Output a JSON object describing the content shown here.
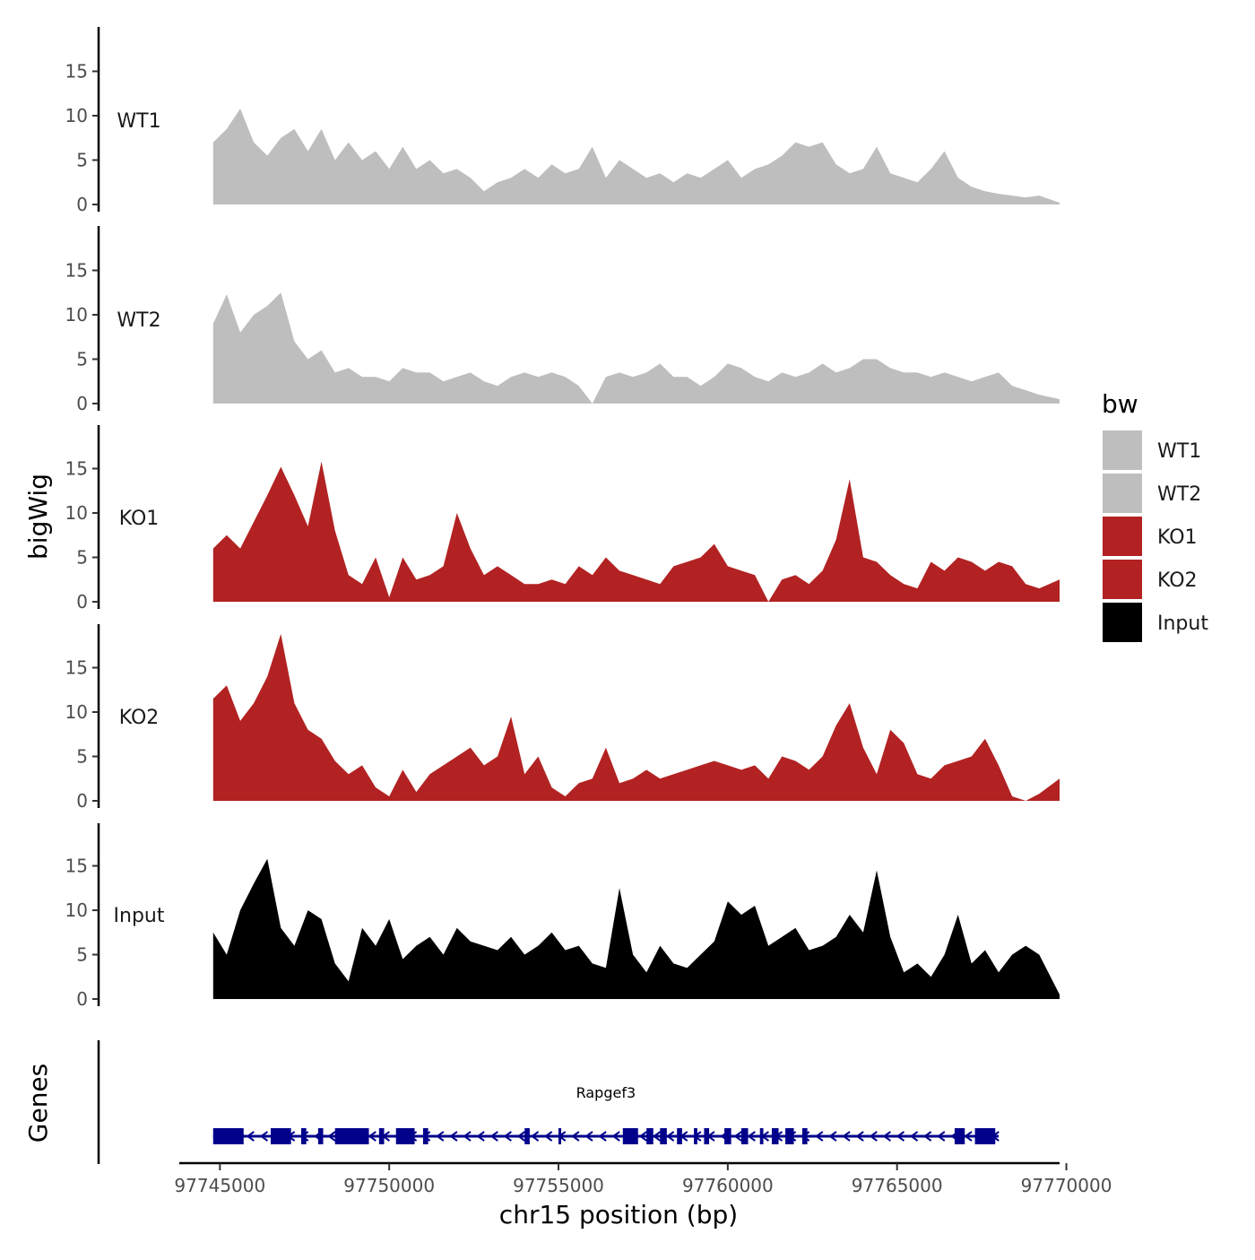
{
  "chart_data": {
    "type": "area",
    "ylabel": "bigWig",
    "xlabel": "chr15 position (bp)",
    "xlim": [
      97743800,
      97769800
    ],
    "xticks": [
      97745000,
      97750000,
      97755000,
      97760000,
      97765000,
      97770000
    ],
    "xtick_labels": [
      "97745000",
      "97750000",
      "97755000",
      "97760000",
      "97765000",
      "97770000"
    ],
    "ylim": [
      0,
      20
    ],
    "yticks": [
      0,
      5,
      10,
      15
    ],
    "ytick_labels": [
      "0",
      "5",
      "10",
      "15"
    ],
    "legend": {
      "title": "bw",
      "position": "right",
      "entries": [
        {
          "label": "WT1",
          "color": "#bebebe"
        },
        {
          "label": "WT2",
          "color": "#bebebe"
        },
        {
          "label": "KO1",
          "color": "#b22222"
        },
        {
          "label": "KO2",
          "color": "#b22222"
        },
        {
          "label": "Input",
          "color": "#000000"
        }
      ]
    },
    "series": [
      {
        "name": "WT1",
        "color": "#bebebe",
        "x": [
          97744800,
          97745200,
          97745600,
          97746000,
          97746400,
          97746800,
          97747200,
          97747600,
          97748000,
          97748400,
          97748800,
          97749200,
          97749600,
          97750000,
          97750400,
          97750800,
          97751200,
          97751600,
          97752000,
          97752400,
          97752800,
          97753200,
          97753600,
          97754000,
          97754400,
          97754800,
          97755200,
          97755600,
          97756000,
          97756400,
          97756800,
          97757200,
          97757600,
          97758000,
          97758400,
          97758800,
          97759200,
          97759600,
          97760000,
          97760400,
          97760800,
          97761200,
          97761600,
          97762000,
          97762400,
          97762800,
          97763200,
          97763600,
          97764000,
          97764400,
          97764800,
          97765200,
          97765600,
          97766000,
          97766400,
          97766800,
          97767200,
          97767600,
          97768000,
          97768400,
          97768800,
          97769200,
          97769800
        ],
        "y": [
          7,
          8.5,
          10.8,
          7,
          5.5,
          7.5,
          8.5,
          6,
          8.5,
          5,
          7,
          5,
          6,
          4,
          6.5,
          4,
          5,
          3.5,
          4,
          3,
          1.5,
          2.5,
          3,
          4,
          3,
          4.5,
          3.5,
          4,
          6.5,
          3,
          5,
          4,
          3,
          3.5,
          2.5,
          3.5,
          3,
          4,
          5,
          3,
          4,
          4.5,
          5.5,
          7,
          6.5,
          7,
          4.5,
          3.5,
          4,
          6.5,
          3.5,
          3,
          2.5,
          4,
          6,
          3,
          2,
          1.5,
          1.2,
          1,
          0.8,
          1,
          0.2
        ]
      },
      {
        "name": "WT2",
        "color": "#bebebe",
        "x": [
          97744800,
          97745200,
          97745600,
          97746000,
          97746400,
          97746800,
          97747200,
          97747600,
          97748000,
          97748400,
          97748800,
          97749200,
          97749600,
          97750000,
          97750400,
          97750800,
          97751200,
          97751600,
          97752000,
          97752400,
          97752800,
          97753200,
          97753600,
          97754000,
          97754400,
          97754800,
          97755200,
          97755600,
          97756000,
          97756400,
          97756800,
          97757200,
          97757600,
          97758000,
          97758400,
          97758800,
          97759200,
          97759600,
          97760000,
          97760400,
          97760800,
          97761200,
          97761600,
          97762000,
          97762400,
          97762800,
          97763200,
          97763600,
          97764000,
          97764400,
          97764800,
          97765200,
          97765600,
          97766000,
          97766400,
          97766800,
          97767200,
          97767600,
          97768000,
          97768400,
          97768800,
          97769200,
          97769800
        ],
        "y": [
          9,
          12.3,
          8,
          10,
          11,
          12.5,
          7,
          5,
          6,
          3.5,
          4,
          3,
          3,
          2.5,
          4,
          3.5,
          3.5,
          2.5,
          3,
          3.5,
          2.5,
          2,
          3,
          3.5,
          3,
          3.5,
          3,
          2,
          0,
          3,
          3.5,
          3,
          3.5,
          4.5,
          3,
          3,
          2,
          3,
          4.5,
          4,
          3,
          2.5,
          3.5,
          3,
          3.5,
          4.5,
          3.5,
          4,
          5,
          5,
          4,
          3.5,
          3.5,
          3,
          3.5,
          3,
          2.5,
          3,
          3.5,
          2,
          1.5,
          1,
          0.5
        ]
      },
      {
        "name": "KO1",
        "color": "#b22222",
        "x": [
          97744800,
          97745200,
          97745600,
          97746000,
          97746400,
          97746800,
          97747200,
          97747600,
          97748000,
          97748400,
          97748800,
          97749200,
          97749600,
          97750000,
          97750400,
          97750800,
          97751200,
          97751600,
          97752000,
          97752400,
          97752800,
          97753200,
          97753600,
          97754000,
          97754400,
          97754800,
          97755200,
          97755600,
          97756000,
          97756400,
          97756800,
          97757200,
          97757600,
          97758000,
          97758400,
          97758800,
          97759200,
          97759600,
          97760000,
          97760400,
          97760800,
          97761200,
          97761600,
          97762000,
          97762400,
          97762800,
          97763200,
          97763600,
          97764000,
          97764400,
          97764800,
          97765200,
          97765600,
          97766000,
          97766400,
          97766800,
          97767200,
          97767600,
          97768000,
          97768400,
          97768800,
          97769200,
          97769800
        ],
        "y": [
          6,
          7.5,
          6,
          9,
          12,
          15.2,
          12,
          8.5,
          15.8,
          8,
          3,
          2,
          5,
          0.5,
          5,
          2.5,
          3,
          4,
          10,
          6,
          3,
          4,
          3,
          2,
          2,
          2.5,
          2,
          4,
          3,
          5,
          3.5,
          3,
          2.5,
          2,
          4,
          4.5,
          5,
          6.5,
          4,
          3.5,
          3,
          0,
          2.5,
          3,
          2,
          3.5,
          7,
          13.8,
          5,
          4.5,
          3,
          2,
          1.5,
          4.5,
          3.5,
          5,
          4.5,
          3.5,
          4.5,
          4,
          2,
          1.5,
          2.5
        ]
      },
      {
        "name": "KO2",
        "color": "#b22222",
        "x": [
          97744800,
          97745200,
          97745600,
          97746000,
          97746400,
          97746800,
          97747200,
          97747600,
          97748000,
          97748400,
          97748800,
          97749200,
          97749600,
          97750000,
          97750400,
          97750800,
          97751200,
          97751600,
          97752000,
          97752400,
          97752800,
          97753200,
          97753600,
          97754000,
          97754400,
          97754800,
          97755200,
          97755600,
          97756000,
          97756400,
          97756800,
          97757200,
          97757600,
          97758000,
          97758400,
          97758800,
          97759200,
          97759600,
          97760000,
          97760400,
          97760800,
          97761200,
          97761600,
          97762000,
          97762400,
          97762800,
          97763200,
          97763600,
          97764000,
          97764400,
          97764800,
          97765200,
          97765600,
          97766000,
          97766400,
          97766800,
          97767200,
          97767600,
          97768000,
          97768400,
          97768800,
          97769200,
          97769800
        ],
        "y": [
          11.5,
          13,
          9,
          11,
          14,
          18.8,
          11,
          8,
          7,
          4.5,
          3,
          4,
          1.5,
          0.5,
          3.5,
          1,
          3,
          4,
          5,
          6,
          4,
          5,
          9.5,
          3,
          5,
          1.5,
          0.5,
          2,
          2.5,
          6,
          2,
          2.5,
          3.5,
          2.5,
          3,
          3.5,
          4,
          4.5,
          4,
          3.5,
          4,
          2.5,
          5,
          4.5,
          3.5,
          5,
          8.5,
          11,
          6,
          3,
          8,
          6.5,
          3,
          2.5,
          4,
          4.5,
          5,
          7,
          4,
          0.5,
          0,
          0.8,
          2.5
        ]
      },
      {
        "name": "Input",
        "color": "#000000",
        "x": [
          97744800,
          97745200,
          97745600,
          97746000,
          97746400,
          97746800,
          97747200,
          97747600,
          97748000,
          97748400,
          97748800,
          97749200,
          97749600,
          97750000,
          97750400,
          97750800,
          97751200,
          97751600,
          97752000,
          97752400,
          97752800,
          97753200,
          97753600,
          97754000,
          97754400,
          97754800,
          97755200,
          97755600,
          97756000,
          97756400,
          97756800,
          97757200,
          97757600,
          97758000,
          97758400,
          97758800,
          97759200,
          97759600,
          97760000,
          97760400,
          97760800,
          97761200,
          97761600,
          97762000,
          97762400,
          97762800,
          97763200,
          97763600,
          97764000,
          97764400,
          97764800,
          97765200,
          97765600,
          97766000,
          97766400,
          97766800,
          97767200,
          97767600,
          97768000,
          97768400,
          97768800,
          97769200,
          97769800
        ],
        "y": [
          7.5,
          5,
          10,
          13,
          15.8,
          8,
          6,
          10,
          9,
          4,
          2,
          8,
          6,
          9,
          4.5,
          6,
          7,
          5,
          8,
          6.5,
          6,
          5.5,
          7,
          5,
          6,
          7.5,
          5.5,
          6,
          4,
          3.5,
          12.5,
          5,
          3,
          6,
          4,
          3.5,
          5,
          6.5,
          11,
          9.5,
          10.5,
          6,
          7,
          8,
          5.5,
          6,
          7,
          9.5,
          7.5,
          14.5,
          7,
          3,
          4,
          2.5,
          5,
          9.5,
          4,
          5.5,
          3,
          5,
          6,
          5,
          0.5
        ]
      }
    ],
    "genes": {
      "title": "Genes",
      "gene_name": "Rapgef3",
      "color": "#00008b",
      "strand": "-",
      "start": 97744800,
      "end": 97768000,
      "exons": [
        [
          97744800,
          97745700
        ],
        [
          97746500,
          97747100
        ],
        [
          97747400,
          97747550
        ],
        [
          97747900,
          97748050
        ],
        [
          97748400,
          97749400
        ],
        [
          97749700,
          97749850
        ],
        [
          97750200,
          97750750
        ],
        [
          97751000,
          97751150
        ],
        [
          97754000,
          97754150
        ],
        [
          97755000,
          97755080
        ],
        [
          97756900,
          97757350
        ],
        [
          97757600,
          97757800
        ],
        [
          97758000,
          97758200
        ],
        [
          97758500,
          97758650
        ],
        [
          97759000,
          97759100
        ],
        [
          97759300,
          97759450
        ],
        [
          97759900,
          97760100
        ],
        [
          97760400,
          97760600
        ],
        [
          97760950,
          97761050
        ],
        [
          97761300,
          97761500
        ],
        [
          97761700,
          97761950
        ],
        [
          97762200,
          97762350
        ],
        [
          97766700,
          97767000
        ],
        [
          97767300,
          97767900
        ]
      ]
    }
  }
}
